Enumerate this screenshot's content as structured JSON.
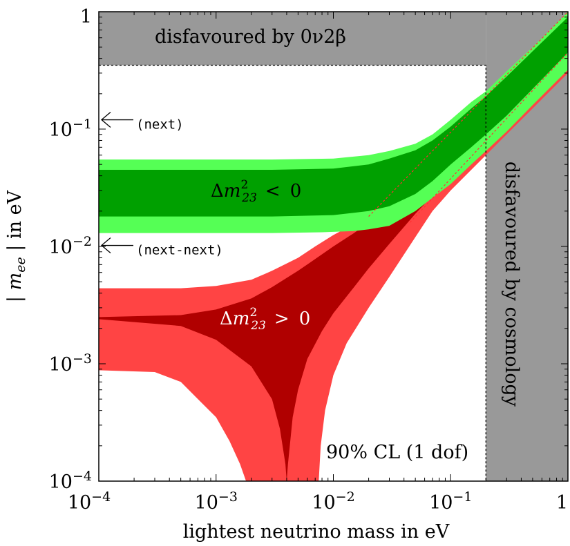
{
  "chart_data": {
    "type": "area",
    "xscale": "log",
    "yscale": "log",
    "xlim": [
      0.0001,
      1
    ],
    "ylim": [
      0.0001,
      1
    ],
    "xlabel": "lightest neutrino mass in eV",
    "ylabel": "| m_ee | in eV",
    "ylabel_parts": {
      "left": "| ",
      "var": "m",
      "sub": "ee",
      "right": " | in eV"
    },
    "x_ticks": [
      {
        "value": 0.0001,
        "base": "10",
        "exp": "−4"
      },
      {
        "value": 0.001,
        "base": "10",
        "exp": "−3"
      },
      {
        "value": 0.01,
        "base": "10",
        "exp": "−2"
      },
      {
        "value": 0.1,
        "base": "10",
        "exp": "−1"
      },
      {
        "value": 1,
        "base": "1",
        "exp": ""
      }
    ],
    "y_ticks": [
      {
        "value": 0.0001,
        "base": "10",
        "exp": "−4"
      },
      {
        "value": 0.001,
        "base": "10",
        "exp": "−3"
      },
      {
        "value": 0.01,
        "base": "10",
        "exp": "−2"
      },
      {
        "value": 0.1,
        "base": "10",
        "exp": "−1"
      },
      {
        "value": 1,
        "base": "1",
        "exp": ""
      }
    ],
    "grid": false,
    "colors": {
      "inverted_dark": "#00a000",
      "inverted_light": "#55ff55",
      "normal_dark": "#b00000",
      "normal_light": "#ff4444",
      "excluded": "#999999"
    },
    "regions": [
      {
        "name": "disfavoured by 0ν2β",
        "y_min": 0.35,
        "y_max": 1
      },
      {
        "name": "disfavoured by cosmology",
        "x_min": 0.2,
        "x_max": 1
      }
    ],
    "bands": {
      "inverted_light": {
        "upper": [
          [
            0.0001,
            0.055
          ],
          [
            0.003,
            0.055
          ],
          [
            0.01,
            0.056
          ],
          [
            0.02,
            0.06
          ],
          [
            0.03,
            0.065
          ],
          [
            0.05,
            0.075
          ],
          [
            0.07,
            0.09
          ],
          [
            0.1,
            0.12
          ],
          [
            0.15,
            0.17
          ],
          [
            0.2,
            0.21
          ],
          [
            0.3,
            0.31
          ],
          [
            0.5,
            0.5
          ],
          [
            1,
            1
          ]
        ],
        "lower": [
          [
            0.0001,
            0.013
          ],
          [
            0.003,
            0.013
          ],
          [
            0.008,
            0.0132
          ],
          [
            0.015,
            0.0135
          ],
          [
            0.02,
            0.014
          ],
          [
            0.03,
            0.015
          ],
          [
            0.05,
            0.02
          ],
          [
            0.07,
            0.026
          ],
          [
            0.1,
            0.034
          ],
          [
            0.15,
            0.05
          ],
          [
            0.2,
            0.065
          ],
          [
            0.3,
            0.095
          ],
          [
            0.5,
            0.16
          ],
          [
            1,
            0.32
          ]
        ]
      },
      "inverted_dark": {
        "upper": [
          [
            0.0001,
            0.045
          ],
          [
            0.003,
            0.045
          ],
          [
            0.01,
            0.046
          ],
          [
            0.02,
            0.05
          ],
          [
            0.03,
            0.056
          ],
          [
            0.05,
            0.066
          ],
          [
            0.07,
            0.08
          ],
          [
            0.1,
            0.105
          ],
          [
            0.15,
            0.15
          ],
          [
            0.2,
            0.19
          ],
          [
            0.3,
            0.28
          ],
          [
            0.5,
            0.46
          ],
          [
            1,
            0.9
          ]
        ],
        "lower": [
          [
            0.0001,
            0.018
          ],
          [
            0.003,
            0.018
          ],
          [
            0.01,
            0.0185
          ],
          [
            0.02,
            0.02
          ],
          [
            0.03,
            0.022
          ],
          [
            0.05,
            0.028
          ],
          [
            0.07,
            0.036
          ],
          [
            0.1,
            0.05
          ],
          [
            0.15,
            0.07
          ],
          [
            0.2,
            0.09
          ],
          [
            0.3,
            0.13
          ],
          [
            0.5,
            0.22
          ],
          [
            1,
            0.45
          ]
        ]
      },
      "normal_light": {
        "upper": [
          [
            0.0001,
            0.0044
          ],
          [
            0.0005,
            0.0044
          ],
          [
            0.001,
            0.0046
          ],
          [
            0.002,
            0.0052
          ],
          [
            0.003,
            0.0062
          ],
          [
            0.005,
            0.008
          ],
          [
            0.007,
            0.01
          ],
          [
            0.01,
            0.0125
          ],
          [
            0.015,
            0.0155
          ],
          [
            0.02,
            0.019
          ],
          [
            0.03,
            0.026
          ],
          [
            0.05,
            0.042
          ],
          [
            0.07,
            0.06
          ],
          [
            0.1,
            0.085
          ],
          [
            0.15,
            0.13
          ],
          [
            0.2,
            0.17
          ],
          [
            0.3,
            0.26
          ],
          [
            0.5,
            0.43
          ],
          [
            1,
            0.85
          ]
        ],
        "lower_left": [
          [
            0.0001,
            0.00088
          ],
          [
            0.0003,
            0.00085
          ],
          [
            0.0005,
            0.0007
          ],
          [
            0.0007,
            0.0005
          ],
          [
            0.001,
            0.00035
          ],
          [
            0.0013,
            0.00022
          ],
          [
            0.0016,
            0.00014
          ],
          [
            0.0018,
            0.0001
          ]
        ],
        "lower_right": [
          [
            0.0075,
            0.0001
          ],
          [
            0.0078,
            0.0002
          ],
          [
            0.0085,
            0.0004
          ],
          [
            0.01,
            0.0008
          ],
          [
            0.013,
            0.0015
          ],
          [
            0.02,
            0.003
          ],
          [
            0.03,
            0.0055
          ],
          [
            0.05,
            0.012
          ],
          [
            0.07,
            0.02
          ],
          [
            0.1,
            0.03
          ],
          [
            0.15,
            0.045
          ],
          [
            0.2,
            0.06
          ],
          [
            0.3,
            0.09
          ],
          [
            0.5,
            0.15
          ],
          [
            1,
            0.3
          ]
        ]
      },
      "normal_dark": {
        "upper": [
          [
            0.0001,
            0.0025
          ],
          [
            0.0005,
            0.0026
          ],
          [
            0.001,
            0.0029
          ],
          [
            0.002,
            0.0036
          ],
          [
            0.003,
            0.0045
          ],
          [
            0.005,
            0.0062
          ],
          [
            0.007,
            0.0078
          ],
          [
            0.01,
            0.01
          ],
          [
            0.015,
            0.013
          ],
          [
            0.02,
            0.016
          ],
          [
            0.03,
            0.022
          ],
          [
            0.05,
            0.036
          ],
          [
            0.07,
            0.05
          ],
          [
            0.1,
            0.07
          ]
        ],
        "lower": [
          [
            0.0001,
            0.0024
          ],
          [
            0.0005,
            0.0021
          ],
          [
            0.001,
            0.0016
          ],
          [
            0.002,
            0.00095
          ],
          [
            0.003,
            0.0005
          ],
          [
            0.0035,
            0.00028
          ],
          [
            0.0039,
            0.00014
          ],
          [
            0.004,
            0.0001
          ],
          [
            0.0041,
            0.00014
          ],
          [
            0.0045,
            0.00035
          ],
          [
            0.005,
            0.0006
          ],
          [
            0.006,
            0.0011
          ],
          [
            0.008,
            0.0019
          ],
          [
            0.01,
            0.0027
          ],
          [
            0.015,
            0.0045
          ],
          [
            0.02,
            0.0065
          ],
          [
            0.03,
            0.0105
          ],
          [
            0.05,
            0.019
          ],
          [
            0.07,
            0.027
          ],
          [
            0.1,
            0.038
          ]
        ]
      },
      "cut_line": [
        [
          0.0001,
          0.35
        ],
        [
          0.2,
          0.35
        ],
        [
          0.2,
          0.0001
        ]
      ],
      "red_dashed_lines": [
        [
          [
            0.02,
            0.018
          ],
          [
            1,
            1
          ]
        ],
        [
          [
            0.045,
            0.016
          ],
          [
            1,
            0.45
          ]
        ]
      ]
    },
    "annotations": [
      {
        "text": "disfavoured by 0ν2β",
        "x": 0.0003,
        "y": 0.6
      },
      {
        "text": "disfavoured by cosmology",
        "x": 0.45,
        "y": 0.003,
        "rotation": 90
      },
      {
        "text": "90% CL (1 dof)",
        "x": 0.035,
        "y": 0.00018
      },
      {
        "text": "(next)",
        "arrow_to_y": 0.12
      },
      {
        "text": "(next-next)",
        "arrow_to_y": 0.0102
      }
    ],
    "band_labels": [
      {
        "name": "inverted",
        "prefix": "Δ",
        "var": "m",
        "sup": "2",
        "sub": "23",
        "relation": "<",
        "rhs": "0",
        "x": 0.012,
        "y": 0.027
      },
      {
        "name": "normal",
        "prefix": "Δ",
        "var": "m",
        "sup": "2",
        "sub": "23",
        "relation": ">",
        "rhs": "0",
        "x": 0.0042,
        "y": 0.0024
      }
    ]
  }
}
